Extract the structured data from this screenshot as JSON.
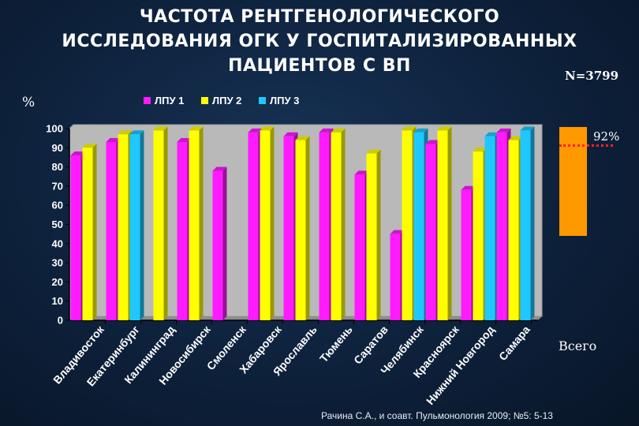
{
  "title": {
    "line1": "ЧАСТОТА РЕНТГЕНОЛОГИЧЕСКОГО",
    "line2": "ИССЛЕДОВАНИЯ ОГК У ГОСПИТАЛИЗИРОВАННЫХ",
    "line3": "ПАЦИЕНТОВ С ВП"
  },
  "n_label": "N=3799",
  "percent_label": "%",
  "total": {
    "label": "Всего",
    "value_label": "92%",
    "value": 92
  },
  "footnote": "Рачина С.А., и соавт. Пульмонология 2009; №5: 5-13",
  "colors": {
    "lpu1": "#ff1aff",
    "lpu2": "#ffff00",
    "lpu3": "#1ec8ff",
    "total": "#ff9900",
    "marker": "#ff2020"
  },
  "chart_data": {
    "type": "bar",
    "title": "ЧАСТОТА РЕНТГЕНОЛОГИЧЕСКОГО ИССЛЕДОВАНИЯ ОГК У ГОСПИТАЛИЗИРОВАННЫХ ПАЦИЕНТОВ С ВП",
    "xlabel": "",
    "ylabel": "%",
    "ylim": [
      0,
      100
    ],
    "yticks": [
      0,
      10,
      20,
      30,
      40,
      50,
      60,
      70,
      80,
      90,
      100
    ],
    "legend_position": "top",
    "categories": [
      "Владивосток",
      "Екатеринбург",
      "Калининград",
      "Новосибирск",
      "Смоленск",
      "Хабаровск",
      "Ярославль",
      "Тюмень",
      "Саратов",
      "Челябинск",
      "Красноярск",
      "Нижний Новгород",
      "Самара"
    ],
    "series": [
      {
        "name": "ЛПУ 1",
        "values": [
          86,
          93,
          null,
          93,
          78,
          98,
          96,
          98,
          76,
          45,
          92,
          68,
          98
        ]
      },
      {
        "name": "ЛПУ 2",
        "values": [
          90,
          97,
          99,
          99,
          null,
          99,
          94,
          98,
          87,
          99,
          99,
          88,
          94
        ]
      },
      {
        "name": "ЛПУ 3",
        "values": [
          null,
          97,
          null,
          null,
          null,
          null,
          null,
          null,
          null,
          98,
          null,
          96,
          99
        ]
      }
    ]
  }
}
